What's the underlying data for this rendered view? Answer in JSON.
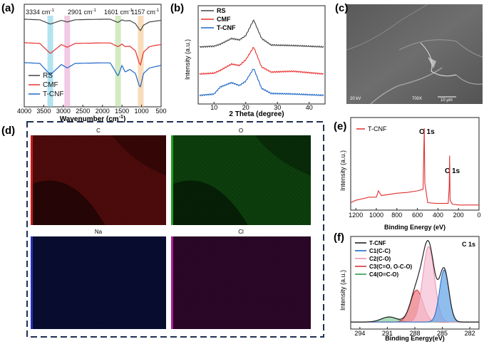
{
  "panels": {
    "a": {
      "label": "(a)",
      "peak_labels": [
        {
          "text": "3334 cm",
          "sup": "-1",
          "x": 3334,
          "color": "#7fd0e8"
        },
        {
          "text": "2901 cm",
          "sup": "-1",
          "x": 2901,
          "color": "#e7a6d1"
        },
        {
          "text": "1601 cm",
          "sup": "-1",
          "x": 1601,
          "color": "#b8dc9a"
        },
        {
          "text": "1157 cm",
          "sup": "-1",
          "x": 1020,
          "color": "#f4c48e"
        }
      ],
      "xlabel": "Wavenumber (cm",
      "xlabel_sup": "-1",
      "xlabel_end": ")",
      "xticks": [
        "4000",
        "3500",
        "3000",
        "2500",
        "2000",
        "1500",
        "1000",
        "500"
      ],
      "legend": [
        {
          "name": "RS",
          "color": "#444444"
        },
        {
          "name": "CMF",
          "color": "#e8312f"
        },
        {
          "name": "T-CNF",
          "color": "#1e67c8"
        }
      ]
    },
    "b": {
      "label": "(b)",
      "xlabel": "2 Theta (degree)",
      "ylabel": "Intensity (a.u.)",
      "xticks": [
        "10",
        "20",
        "30",
        "40"
      ],
      "legend": [
        {
          "name": "RS",
          "color": "#444444"
        },
        {
          "name": "CMF",
          "color": "#e8312f"
        },
        {
          "name": "T-CNF",
          "color": "#1e67c8"
        }
      ]
    },
    "c": {
      "label": "(c)",
      "info": [
        "20 kV",
        "700X",
        "10 μm"
      ]
    },
    "d": {
      "label": "(d)",
      "maps": [
        {
          "element": "C",
          "color": "#c81a1a"
        },
        {
          "element": "O",
          "color": "#1fa01f"
        },
        {
          "element": "Na",
          "color": "#2330c0"
        },
        {
          "element": "Cl",
          "color": "#b01a9a"
        }
      ]
    },
    "e": {
      "label": "(e)",
      "legend": "T-CNF",
      "annotations": [
        "O 1s",
        "C 1s"
      ],
      "xlabel": "Binding Energy (eV)",
      "ylabel": "Intensity (a.u.)",
      "xticks": [
        "1200",
        "1000",
        "800",
        "600",
        "400",
        "200",
        "0"
      ]
    },
    "f": {
      "label": "(f)",
      "title": "C 1s",
      "legend": [
        {
          "name": "T-CNF",
          "color": "#222222"
        },
        {
          "name": "C1(C-C)",
          "color": "#1e67c8"
        },
        {
          "name": "C2(C-O)",
          "color": "#ee8fb0"
        },
        {
          "name": "C3(C=O, O-C-O)",
          "color": "#d9363e"
        },
        {
          "name": "C4(O=C-O)",
          "color": "#2e9e4f"
        }
      ],
      "xlabel": "Binding Energy(eV)",
      "ylabel": "Intensity (a.u.)",
      "xticks": [
        "294",
        "291",
        "288",
        "285",
        "282"
      ]
    }
  },
  "chart_data": [
    {
      "type": "line",
      "panel": "a",
      "xlabel": "Wavenumber (cm-1)",
      "xlim": [
        4000,
        500
      ],
      "series": [
        {
          "name": "RS",
          "x": [
            4000,
            3600,
            3334,
            3050,
            2901,
            2700,
            2400,
            2000,
            1800,
            1601,
            1500,
            1420,
            1300,
            1157,
            1060,
            1030,
            950,
            800,
            650,
            500
          ],
          "y": [
            0.08,
            0.1,
            0.26,
            0.12,
            0.18,
            0.1,
            0.09,
            0.08,
            0.08,
            0.2,
            0.1,
            0.14,
            0.13,
            0.24,
            0.45,
            0.5,
            0.3,
            0.18,
            0.15,
            0.12
          ]
        },
        {
          "name": "CMF",
          "x": [
            4000,
            3600,
            3334,
            3050,
            2901,
            2700,
            2400,
            2000,
            1800,
            1601,
            1500,
            1420,
            1300,
            1157,
            1060,
            1030,
            950,
            800,
            650,
            500
          ],
          "y": [
            0.05,
            0.08,
            0.45,
            0.12,
            0.22,
            0.08,
            0.07,
            0.06,
            0.06,
            0.2,
            0.1,
            0.2,
            0.18,
            0.35,
            0.8,
            0.88,
            0.4,
            0.2,
            0.15,
            0.12
          ]
        },
        {
          "name": "T-CNF",
          "x": [
            4000,
            3600,
            3334,
            3050,
            2901,
            2700,
            2400,
            2000,
            1800,
            1601,
            1500,
            1420,
            1300,
            1157,
            1060,
            1030,
            950,
            800,
            650,
            500
          ],
          "y": [
            0.05,
            0.08,
            0.5,
            0.12,
            0.25,
            0.08,
            0.07,
            0.06,
            0.06,
            0.55,
            0.15,
            0.4,
            0.3,
            0.45,
            0.9,
            0.95,
            0.45,
            0.25,
            0.2,
            0.15
          ]
        }
      ]
    },
    {
      "type": "line",
      "panel": "b",
      "xlabel": "2 Theta (degree)",
      "ylabel": "Intensity (a.u.)",
      "xlim": [
        5,
        45
      ],
      "series": [
        {
          "name": "RS",
          "x": [
            5,
            10,
            12,
            15.5,
            18,
            20,
            22.5,
            25,
            28,
            35,
            45
          ],
          "y": [
            0.05,
            0.08,
            0.15,
            0.35,
            0.3,
            0.45,
            1.0,
            0.35,
            0.12,
            0.1,
            0.05
          ]
        },
        {
          "name": "CMF",
          "x": [
            5,
            10,
            12,
            15.5,
            18,
            20,
            22.5,
            25,
            28,
            35,
            45
          ],
          "y": [
            0.05,
            0.08,
            0.18,
            0.4,
            0.35,
            0.55,
            1.0,
            0.3,
            0.12,
            0.15,
            0.05
          ]
        },
        {
          "name": "T-CNF",
          "x": [
            5,
            10,
            12,
            15.5,
            18,
            20,
            22.5,
            25,
            28,
            35,
            45
          ],
          "y": [
            0.05,
            0.1,
            0.35,
            0.5,
            0.4,
            0.55,
            1.0,
            0.3,
            0.12,
            0.1,
            0.05
          ]
        }
      ]
    },
    {
      "type": "line",
      "panel": "e",
      "xlabel": "Binding Energy (eV)",
      "ylabel": "Intensity (a.u.)",
      "xlim": [
        1250,
        0
      ],
      "series": [
        {
          "name": "T-CNF",
          "x": [
            1250,
            1200,
            1070,
            1000,
            980,
            950,
            800,
            700,
            600,
            545,
            533,
            528,
            500,
            420,
            300,
            290,
            286,
            282,
            260,
            200,
            100,
            0
          ],
          "y": [
            0.05,
            0.08,
            0.12,
            0.12,
            0.2,
            0.14,
            0.17,
            0.18,
            0.2,
            0.22,
            1.0,
            0.3,
            0.05,
            0.04,
            0.04,
            0.25,
            0.65,
            0.08,
            0.03,
            0.02,
            0.02,
            0.02
          ]
        }
      ]
    },
    {
      "type": "area",
      "panel": "f",
      "xlabel": "Binding Energy(eV)",
      "ylabel": "Intensity (a.u.)",
      "xlim": [
        295,
        281
      ],
      "components": [
        {
          "name": "C1(C-C)",
          "center": 284.8,
          "height": 0.62,
          "fwhm": 1.2
        },
        {
          "name": "C2(C-O)",
          "center": 286.5,
          "height": 0.9,
          "fwhm": 1.5
        },
        {
          "name": "C3(C=O, O-C-O)",
          "center": 287.8,
          "height": 0.38,
          "fwhm": 1.6
        },
        {
          "name": "C4(O=C-O)",
          "center": 290.8,
          "height": 0.06,
          "fwhm": 2.0
        }
      ],
      "baseline": 0.05
    }
  ]
}
